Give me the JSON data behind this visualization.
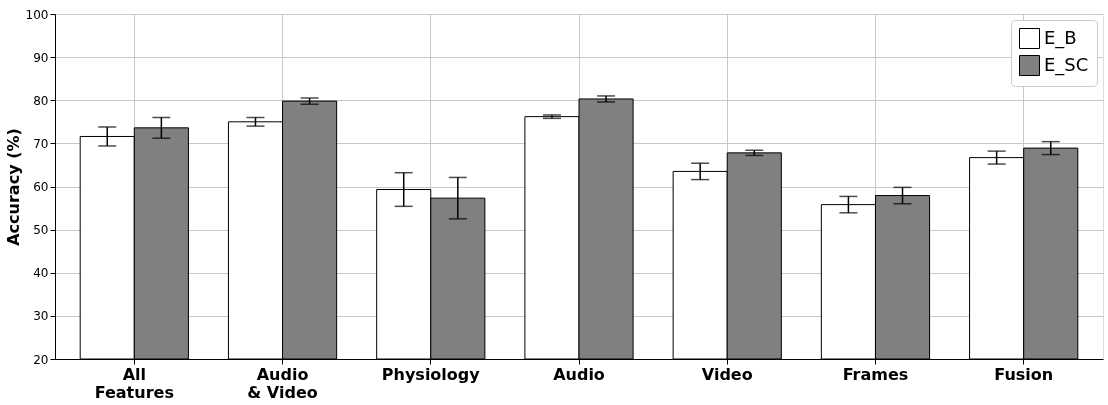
{
  "chart_data": {
    "type": "bar",
    "ylabel": "Accuracy (%)",
    "categories": [
      "All\nFeatures",
      "Audio\n& Video",
      "Physiology",
      "Audio",
      "Video",
      "Frames",
      "Fusion"
    ],
    "series": [
      {
        "name": "E_B",
        "color": "#ffffff",
        "values": [
          71.6,
          75.0,
          59.3,
          76.2,
          63.5,
          55.8,
          66.7
        ],
        "errors": [
          2.2,
          1.0,
          3.9,
          0.4,
          1.9,
          1.9,
          1.5
        ]
      },
      {
        "name": "E_SC",
        "color": "#808080",
        "values": [
          73.6,
          79.8,
          57.3,
          80.3,
          67.8,
          57.9,
          68.9
        ],
        "errors": [
          2.4,
          0.7,
          4.8,
          0.7,
          0.6,
          1.9,
          1.5
        ]
      }
    ],
    "ylim": [
      20,
      100
    ],
    "yticks": [
      20,
      30,
      40,
      50,
      60,
      70,
      80,
      90,
      100
    ],
    "grid": true,
    "legend": "top right"
  }
}
